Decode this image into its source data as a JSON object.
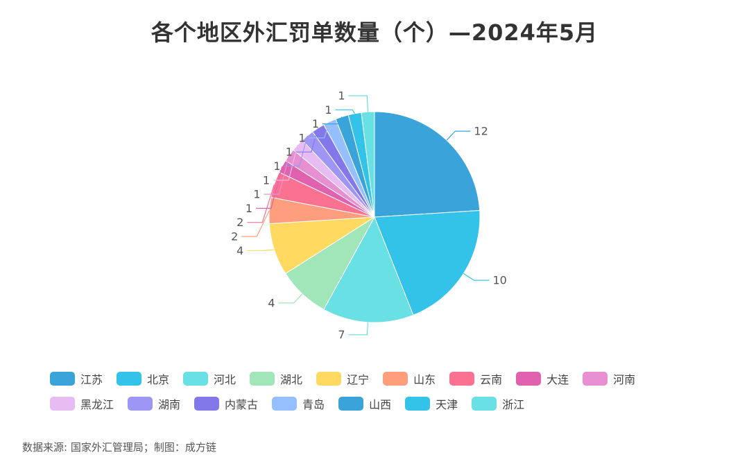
{
  "chart_data": {
    "type": "pie",
    "title": "各个地区外汇罚单数量（个）—2024年5月",
    "categories": [
      "江苏",
      "北京",
      "河北",
      "湖北",
      "辽宁",
      "山东",
      "云南",
      "大连",
      "河南",
      "黑龙江",
      "湖南",
      "内蒙古",
      "青岛",
      "山西",
      "天津",
      "浙江"
    ],
    "values": [
      12,
      10,
      7,
      4,
      4,
      2,
      2,
      1,
      1,
      1,
      1,
      1,
      1,
      1,
      1,
      1
    ],
    "colors": [
      "#3aa3d9",
      "#34c3e8",
      "#68e0e4",
      "#a0e6b9",
      "#ffd960",
      "#ff9e7d",
      "#fb7290",
      "#e062ae",
      "#e690d1",
      "#e7bcf3",
      "#9d96f5",
      "#8378ea",
      "#96bfff",
      "#3aa3d9",
      "#34c3e8",
      "#68e0e4"
    ],
    "legend_position": "bottom",
    "data_labels": "outside"
  },
  "source": "数据来源: 国家外汇管理局；制图：成方链"
}
